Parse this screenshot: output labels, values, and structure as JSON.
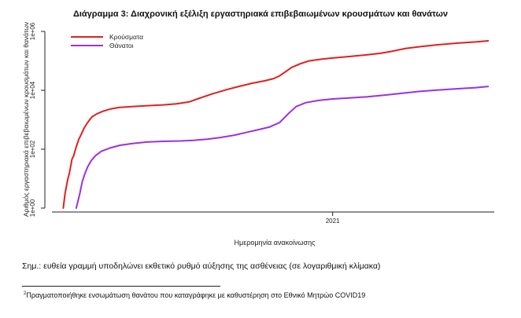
{
  "chart_data": {
    "type": "line",
    "title": "Διάγραμμα 3: Διαχρονική εξέλιξη εργαστηριακά επιβεβαιωμένων κρουσμάτων και θανάτων",
    "xlabel": "Ημερομηνία ανακοίνωσης",
    "ylabel": "Αριθμός εργαστηριακά επιβεβαιωμένων κρουσμάτων και θανάτων",
    "x_ticks": [
      "2021"
    ],
    "x_tick_dates": [
      "2021-01-01"
    ],
    "xlim": [
      "2020-02-13",
      "2021-07-06"
    ],
    "y_scale": "log",
    "y_ticks": [
      "1e+00",
      "1e+02",
      "1e+04",
      "1e+06"
    ],
    "ylim": [
      1,
      1000000
    ],
    "grid": false,
    "legend_position": "top-left",
    "series": [
      {
        "name": "Κρούσματα",
        "color": "#e02020",
        "x": [
          "2020-02-26",
          "2020-02-28",
          "2020-03-02",
          "2020-03-04",
          "2020-03-07",
          "2020-03-09",
          "2020-03-12",
          "2020-03-15",
          "2020-03-18",
          "2020-03-21",
          "2020-03-25",
          "2020-03-30",
          "2020-04-05",
          "2020-04-12",
          "2020-04-20",
          "2020-04-30",
          "2020-05-15",
          "2020-06-01",
          "2020-06-20",
          "2020-07-05",
          "2020-07-20",
          "2020-08-01",
          "2020-08-15",
          "2020-09-01",
          "2020-09-15",
          "2020-10-01",
          "2020-10-15",
          "2020-10-25",
          "2020-11-01",
          "2020-11-08",
          "2020-11-15",
          "2020-11-25",
          "2020-12-05",
          "2020-12-20",
          "2021-01-01",
          "2021-01-20",
          "2021-02-10",
          "2021-02-25",
          "2021-03-10",
          "2021-03-25",
          "2021-04-10",
          "2021-05-01",
          "2021-05-25",
          "2021-06-15",
          "2021-06-29"
        ],
        "y": [
          1,
          3,
          9,
          15,
          45,
          60,
          120,
          220,
          330,
          520,
          800,
          1250,
          1600,
          1950,
          2300,
          2600,
          2800,
          3000,
          3200,
          3450,
          4050,
          5400,
          7500,
          10500,
          13500,
          17500,
          21000,
          25000,
          31000,
          43000,
          60000,
          80000,
          100000,
          115000,
          125000,
          140000,
          160000,
          180000,
          210000,
          260000,
          300000,
          350000,
          400000,
          440000,
          480000
        ]
      },
      {
        "name": "Θάνατοι",
        "color": "#9b30e0",
        "x": [
          "2020-03-12",
          "2020-03-16",
          "2020-03-19",
          "2020-03-22",
          "2020-03-25",
          "2020-03-29",
          "2020-04-03",
          "2020-04-10",
          "2020-04-20",
          "2020-05-01",
          "2020-05-15",
          "2020-06-01",
          "2020-06-20",
          "2020-07-10",
          "2020-07-25",
          "2020-08-10",
          "2020-08-25",
          "2020-09-10",
          "2020-09-25",
          "2020-10-10",
          "2020-10-20",
          "2020-11-01",
          "2020-11-10",
          "2020-11-20",
          "2020-12-01",
          "2020-12-15",
          "2021-01-01",
          "2021-01-20",
          "2021-02-10",
          "2021-03-01",
          "2021-03-20",
          "2021-04-10",
          "2021-05-01",
          "2021-05-25",
          "2021-06-15",
          "2021-06-29"
        ],
        "y": [
          1,
          3,
          8,
          15,
          25,
          40,
          60,
          85,
          110,
          135,
          155,
          175,
          185,
          190,
          200,
          220,
          250,
          300,
          380,
          480,
          560,
          800,
          1500,
          2800,
          3800,
          4500,
          5100,
          5500,
          6000,
          6800,
          7800,
          9100,
          10200,
          11300,
          12300,
          13500
        ]
      }
    ]
  },
  "note": "Σημ.: ευθεία γραμμή υποδηλώνει εκθετικό ρυθμό αύξησης της ασθένειας (σε λογαριθμική κλίμακα)",
  "footnote": {
    "marker": "2",
    "text": "Πραγματοποιήθηκε ενσωμάτωση θανάτου που καταγράφηκε με καθυστέρηση στο Εθνικό Μητρώο COVID19"
  }
}
